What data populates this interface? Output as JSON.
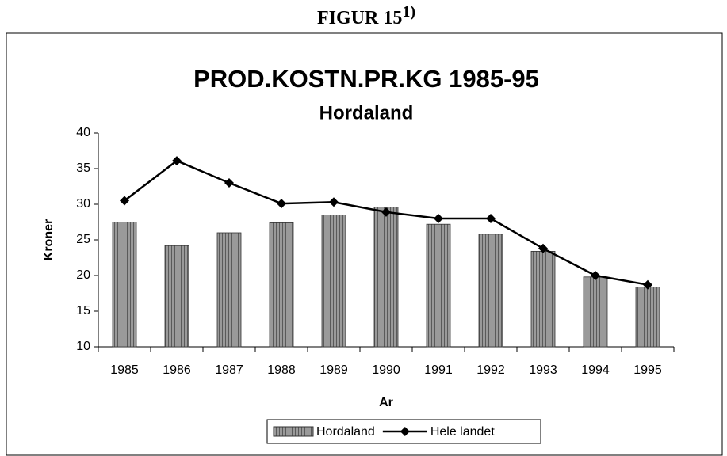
{
  "heading": {
    "text": "FIGUR 15",
    "superscript": "1)"
  },
  "chart_data": {
    "type": "combo",
    "title": "PROD.KOSTN.PR.KG 1985-95",
    "subtitle": "Hordaland",
    "y_label": "Kroner",
    "x_label": "Ar",
    "categories": [
      "1985",
      "1986",
      "1987",
      "1988",
      "1989",
      "1990",
      "1991",
      "1992",
      "1993",
      "1994",
      "1995"
    ],
    "series": [
      {
        "name": "Hordaland",
        "type": "bar",
        "color": "#8a8a8a",
        "values": [
          27.5,
          24.2,
          26.0,
          27.4,
          28.5,
          29.6,
          27.2,
          25.8,
          23.4,
          19.8,
          18.4
        ]
      },
      {
        "name": "Hele landet",
        "type": "line",
        "color": "#000000",
        "values": [
          30.5,
          36.1,
          33.0,
          30.1,
          30.3,
          28.9,
          28.0,
          28.0,
          23.8,
          20.0,
          18.7
        ]
      }
    ],
    "ylim": [
      10,
      40
    ],
    "yticks": [
      10,
      15,
      20,
      25,
      30,
      35,
      40
    ],
    "grid": false,
    "legend": "bottom"
  }
}
